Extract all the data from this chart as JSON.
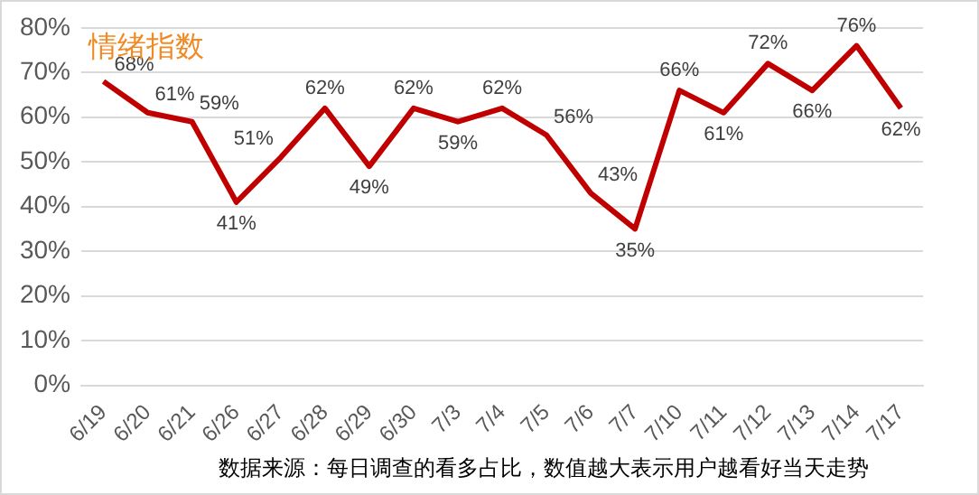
{
  "chart_data": {
    "type": "line",
    "title": "情绪指数",
    "annotations": [
      "数据来源：每日调查的看多占比，数值越大表示用户越看好当天走势"
    ],
    "categories": [
      "6/19",
      "6/20",
      "6/21",
      "6/26",
      "6/27",
      "6/28",
      "6/29",
      "6/30",
      "7/3",
      "7/4",
      "7/5",
      "7/6",
      "7/7",
      "7/10",
      "7/11",
      "7/12",
      "7/13",
      "7/14",
      "7/17"
    ],
    "series": [
      {
        "color": "#c00000",
        "values": [
          68,
          61,
          59,
          41,
          51,
          62,
          49,
          62,
          59,
          62,
          56,
          43,
          35,
          66,
          61,
          72,
          66,
          76,
          62
        ],
        "value_labels": [
          "68%",
          "61%",
          "59%",
          "41%",
          "51%",
          "62%",
          "49%",
          "62%",
          "59%",
          "62%",
          "56%",
          "43%",
          "35%",
          "66%",
          "61%",
          "72%",
          "66%",
          "76%",
          "62%"
        ]
      }
    ],
    "ylim": [
      0,
      80
    ],
    "yticks": [
      {
        "value": 0,
        "label": "0%"
      },
      {
        "value": 10,
        "label": "10%"
      },
      {
        "value": 20,
        "label": "20%"
      },
      {
        "value": 30,
        "label": "30%"
      },
      {
        "value": 40,
        "label": "40%"
      },
      {
        "value": 50,
        "label": "50%"
      },
      {
        "value": 60,
        "label": "60%"
      },
      {
        "value": 70,
        "label": "70%"
      },
      {
        "value": 80,
        "label": "80%"
      }
    ],
    "grid": "y",
    "legend": false,
    "marker": "none",
    "line_style": "solid"
  }
}
